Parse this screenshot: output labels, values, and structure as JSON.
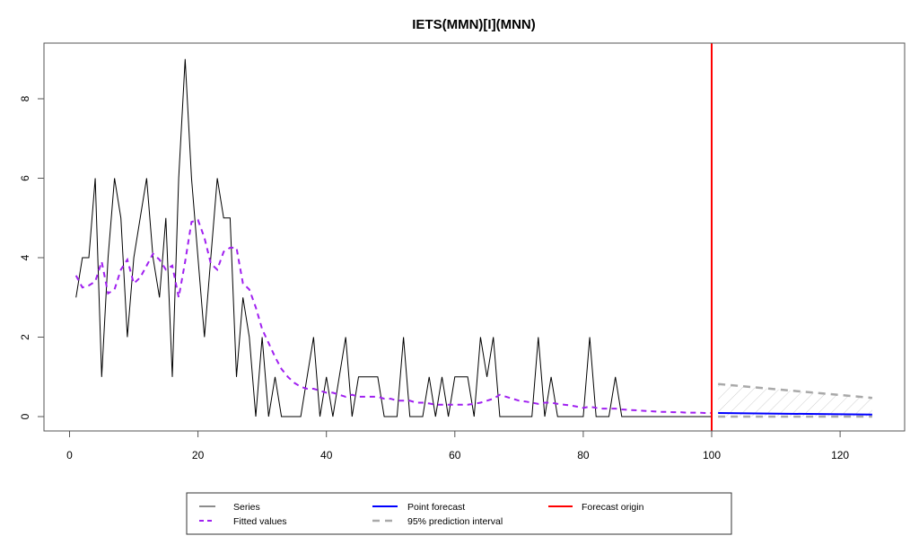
{
  "chart_data": {
    "type": "line",
    "title": "IETS(MMN)[I](MNN)",
    "xlabel": "",
    "ylabel": "",
    "xlim": [
      -4,
      127
    ],
    "ylim": [
      -0.36,
      9.45
    ],
    "x_ticks": [
      0,
      20,
      40,
      60,
      80,
      100,
      120
    ],
    "y_ticks": [
      0,
      2,
      4,
      6,
      8
    ],
    "grid": false,
    "legend_position": "bottom",
    "forecast_origin": 100,
    "series": [
      {
        "name": "Series",
        "color": "#000000",
        "style": "solid",
        "x_start": 1,
        "values": [
          3,
          4,
          4,
          6,
          1,
          4,
          6,
          5,
          2,
          4,
          5,
          6,
          4,
          3,
          5,
          1,
          6,
          9,
          6,
          4,
          2,
          4,
          6,
          5,
          5,
          1,
          3,
          2,
          0,
          2,
          0,
          1,
          0,
          0,
          0,
          0,
          1,
          2,
          0,
          1,
          0,
          1,
          2,
          0,
          1,
          1,
          1,
          1,
          0,
          0,
          0,
          2,
          0,
          0,
          0,
          1,
          0,
          1,
          0,
          1,
          1,
          1,
          0,
          2,
          1,
          2,
          0,
          0,
          0,
          0,
          0,
          0,
          2,
          0,
          1,
          0,
          0,
          0,
          0,
          0,
          2,
          0,
          0,
          0,
          1,
          0,
          0,
          0,
          0,
          0,
          0,
          0,
          0,
          0,
          0,
          0,
          0,
          0,
          0,
          0
        ]
      },
      {
        "name": "Fitted values",
        "color": "#A020F0",
        "style": "dashed",
        "x_start": 1,
        "values": [
          3.55,
          3.25,
          3.3,
          3.4,
          3.9,
          3.1,
          3.2,
          3.7,
          3.95,
          3.35,
          3.5,
          3.8,
          4.1,
          3.95,
          3.7,
          3.8,
          3.0,
          3.9,
          4.9,
          4.95,
          4.5,
          3.85,
          3.7,
          4.15,
          4.25,
          4.25,
          3.35,
          3.2,
          2.75,
          2.2,
          1.85,
          1.5,
          1.2,
          1.0,
          0.85,
          0.75,
          0.7,
          0.7,
          0.65,
          0.6,
          0.6,
          0.55,
          0.5,
          0.55,
          0.5,
          0.5,
          0.5,
          0.5,
          0.45,
          0.45,
          0.4,
          0.4,
          0.4,
          0.35,
          0.35,
          0.33,
          0.3,
          0.3,
          0.3,
          0.3,
          0.3,
          0.3,
          0.32,
          0.35,
          0.4,
          0.45,
          0.55,
          0.5,
          0.45,
          0.4,
          0.38,
          0.35,
          0.32,
          0.35,
          0.35,
          0.32,
          0.3,
          0.28,
          0.25,
          0.22,
          0.25,
          0.22,
          0.2,
          0.2,
          0.2,
          0.18,
          0.17,
          0.16,
          0.15,
          0.14,
          0.13,
          0.12,
          0.12,
          0.11,
          0.11,
          0.1,
          0.1,
          0.1,
          0.09,
          0.09
        ]
      },
      {
        "name": "Point forecast",
        "color": "#0000FF",
        "style": "solid",
        "x": [
          101,
          125
        ],
        "values": [
          0.09,
          0.05
        ]
      },
      {
        "name": "95% prediction interval upper",
        "color": "#A9A9A9",
        "style": "dashed",
        "x": [
          101,
          125
        ],
        "values": [
          0.82,
          0.47
        ]
      },
      {
        "name": "95% prediction interval lower",
        "color": "#A9A9A9",
        "style": "dashed",
        "x": [
          101,
          125
        ],
        "values": [
          0.0,
          0.0
        ]
      }
    ]
  },
  "legend": {
    "items": [
      {
        "label": "Series",
        "color": "#666666",
        "style": "solid"
      },
      {
        "label": "Fitted values",
        "color": "#A020F0",
        "style": "dashed"
      },
      {
        "label": "Point forecast",
        "color": "#0000FF",
        "style": "solid"
      },
      {
        "label": "95% prediction interval",
        "color": "#A9A9A9",
        "style": "dashed"
      },
      {
        "label": "Forecast origin",
        "color": "#FF0000",
        "style": "solid"
      }
    ]
  }
}
